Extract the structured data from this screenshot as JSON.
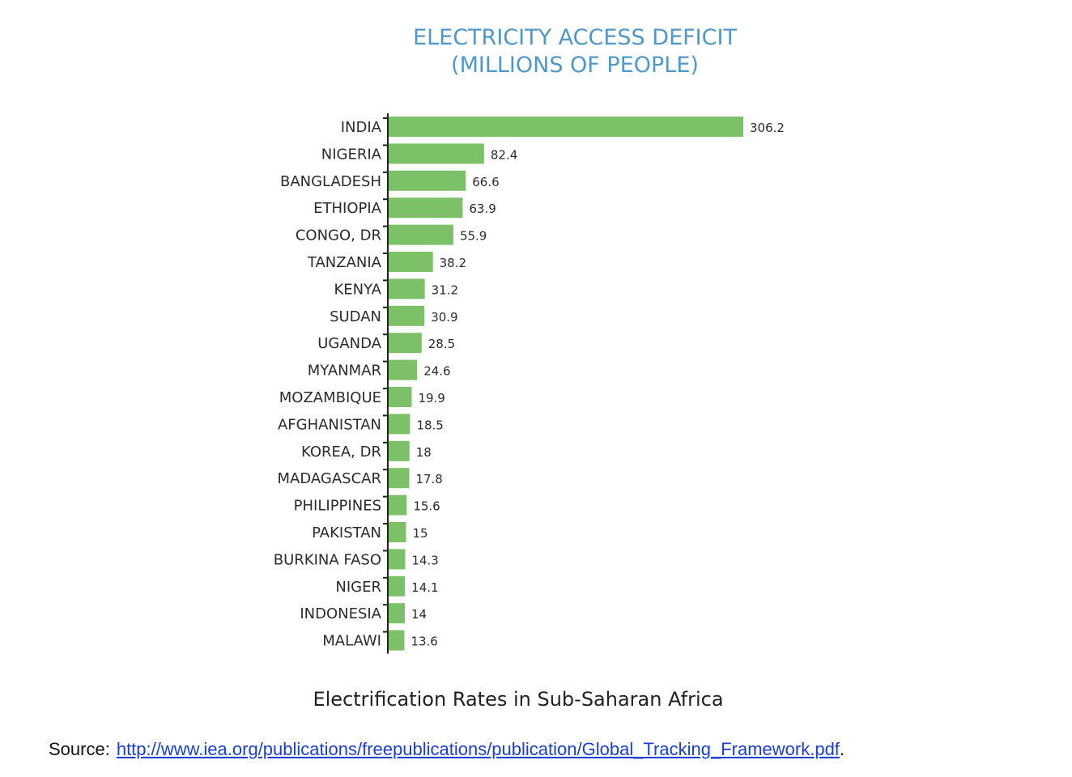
{
  "chart_data": {
    "type": "bar",
    "orientation": "horizontal",
    "title": "ELECTRICITY ACCESS DEFICIT",
    "subtitle": "(MILLIONS OF PEOPLE)",
    "categories": [
      "INDIA",
      "NIGERIA",
      "BANGLADESH",
      "ETHIOPIA",
      "CONGO, DR",
      "TANZANIA",
      "KENYA",
      "SUDAN",
      "UGANDA",
      "MYANMAR",
      "MOZAMBIQUE",
      "AFGHANISTAN",
      "KOREA, DR",
      "MADAGASCAR",
      "PHILIPPINES",
      "PAKISTAN",
      "BURKINA FASO",
      "NIGER",
      "INDONESIA",
      "MALAWI"
    ],
    "values": [
      306.2,
      82.4,
      66.6,
      63.9,
      55.9,
      38.2,
      31.2,
      30.9,
      28.5,
      24.6,
      19.9,
      18.5,
      18,
      17.8,
      15.6,
      15,
      14.3,
      14.1,
      14,
      13.6
    ],
    "value_labels": [
      "306.2",
      "82.4",
      "66.6",
      "63.9",
      "55.9",
      "38.2",
      "31.2",
      "30.9",
      "28.5",
      "24.6",
      "19.9",
      "18.5",
      "18",
      "17.8",
      "15.6",
      "15",
      "14.3",
      "14.1",
      "14",
      "13.6"
    ],
    "bar_color": "#7cc067",
    "title_color": "#4f98c9",
    "grid": false,
    "legend": "none"
  },
  "caption": "Electrification Rates in Sub-Saharan Africa",
  "source": {
    "label": "Source:",
    "link_text": "http://www.iea.org/publications/freepublications/publication/Global_Tracking_Framework.pdf",
    "trailing": "."
  }
}
